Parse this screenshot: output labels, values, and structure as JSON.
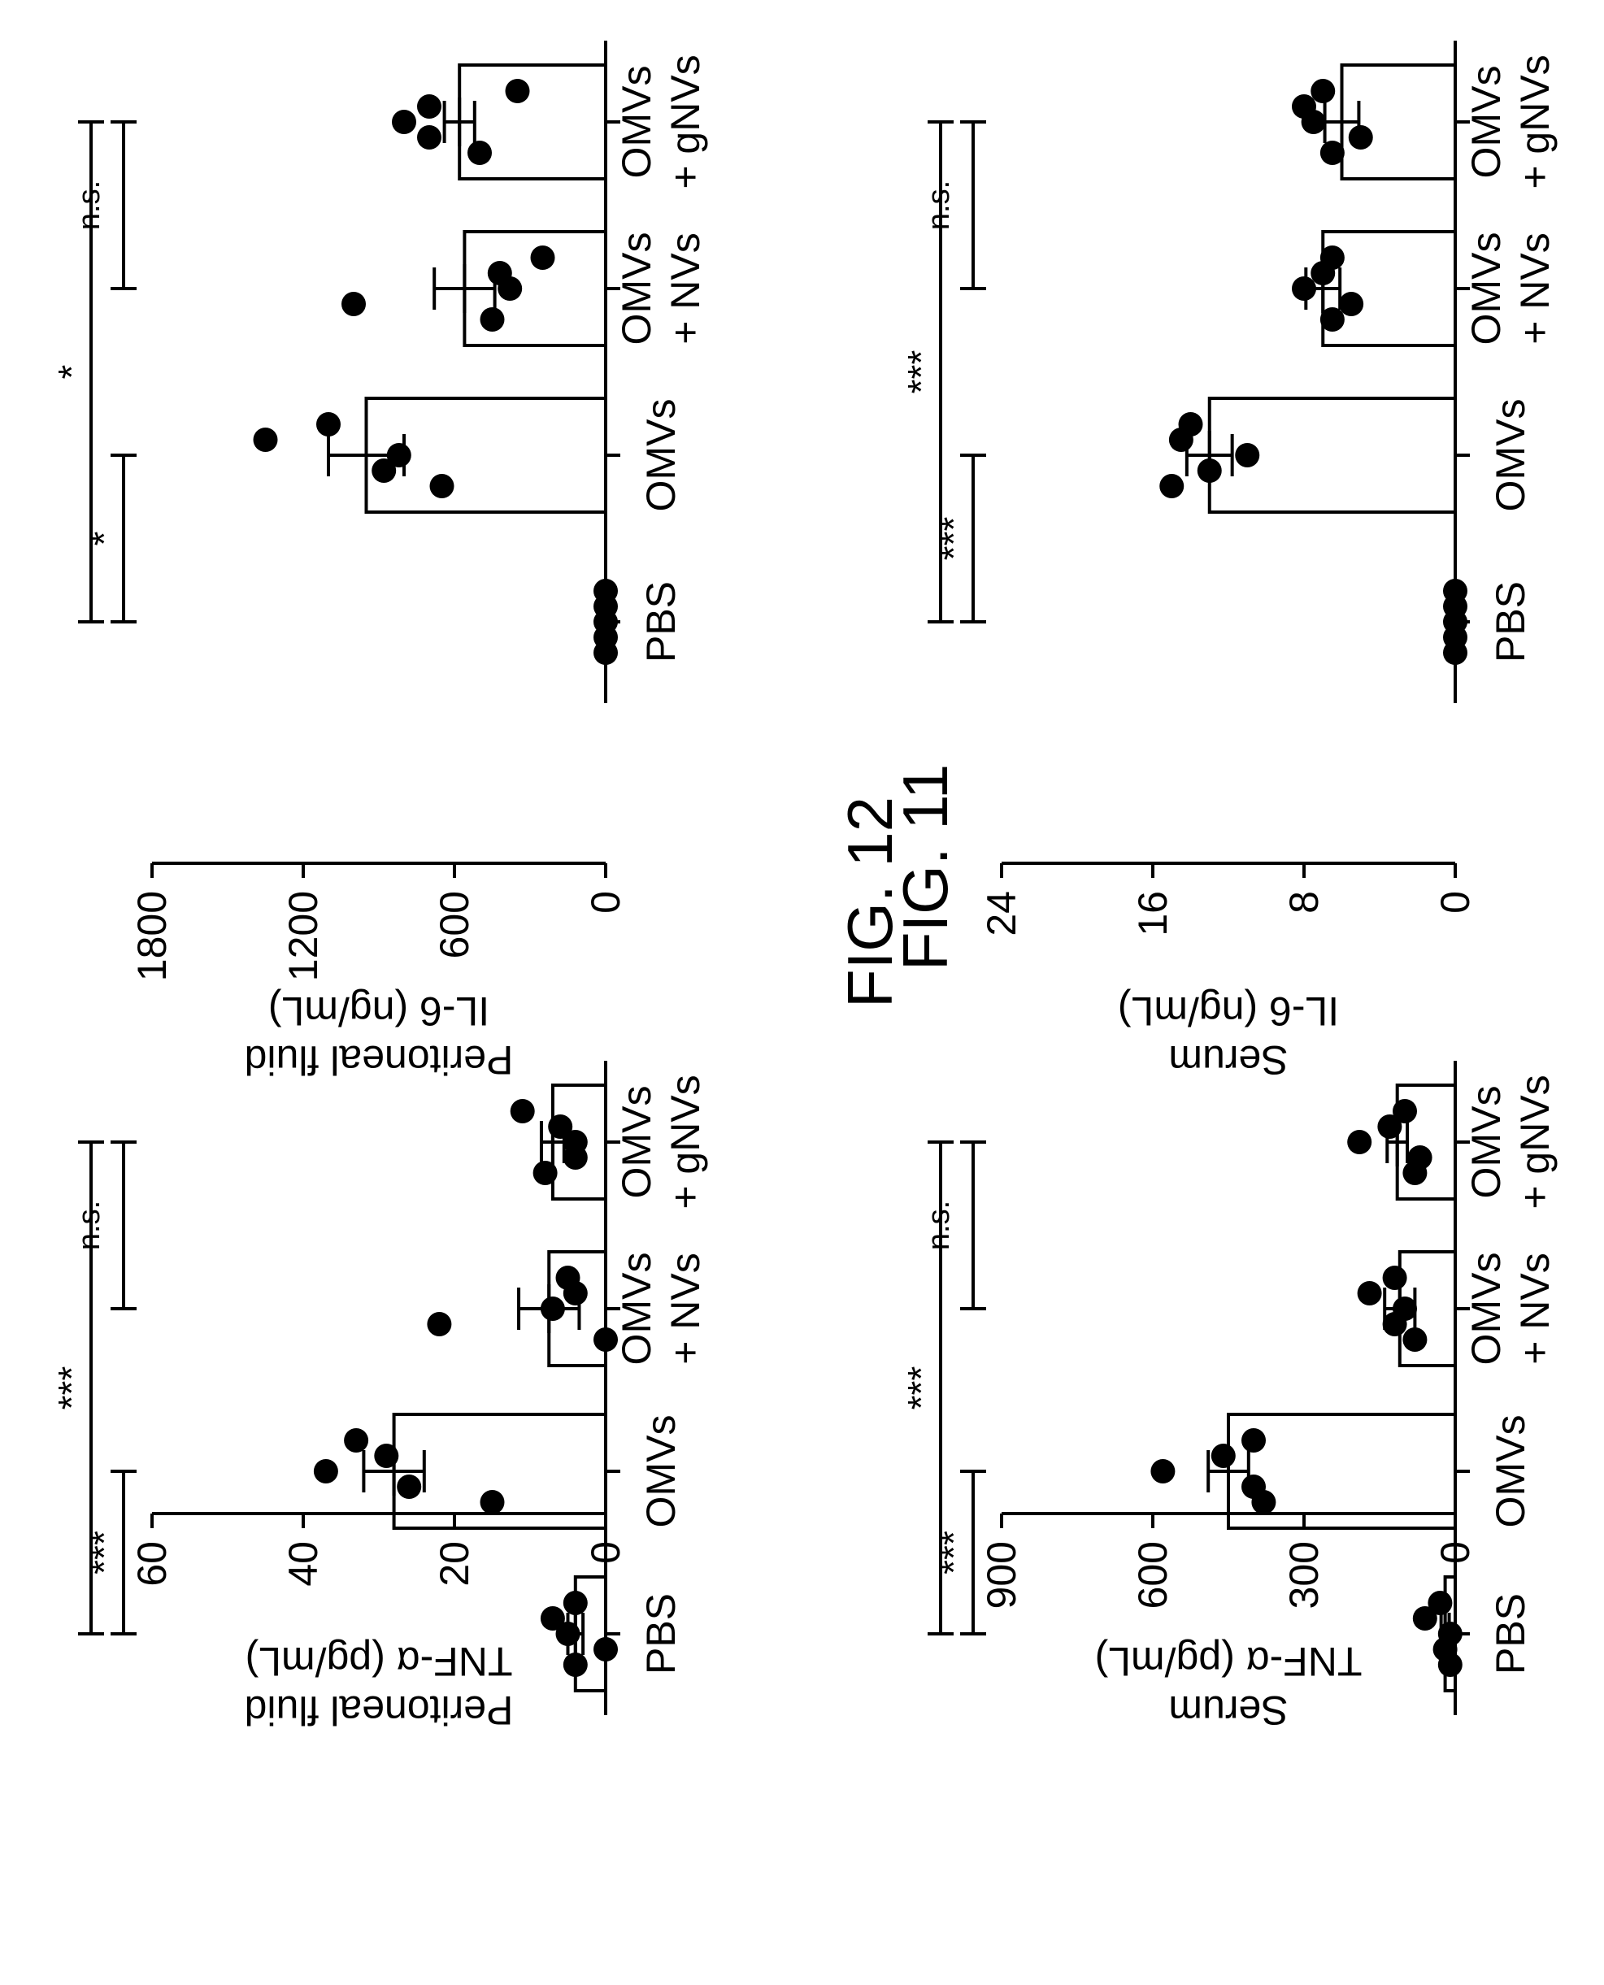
{
  "figures": [
    {
      "label": "FIG. 11",
      "panels": [
        0,
        1
      ]
    },
    {
      "label": "FIG. 12",
      "panels": [
        2,
        3
      ]
    }
  ],
  "colors": {
    "ink": "#000000",
    "background": "#ffffff"
  },
  "chart_data": [
    {
      "type": "bar",
      "title": "",
      "ylabel": [
        "Peritoneal fluid",
        "TNF-α (pg/mL)"
      ],
      "ylim": [
        0,
        60
      ],
      "yticks": [
        0,
        20,
        40,
        60
      ],
      "categories": [
        [
          "PBS"
        ],
        [
          "OMVs"
        ],
        [
          "OMVs",
          "+ NVs"
        ],
        [
          "OMVs",
          "+ gNVs"
        ]
      ],
      "means": [
        4,
        28,
        7.5,
        7
      ],
      "sem": [
        1,
        4,
        4,
        1.5
      ],
      "points": [
        [
          4,
          7,
          5,
          0,
          4
        ],
        [
          33,
          29,
          37,
          26,
          15
        ],
        [
          5,
          4,
          7,
          22,
          0
        ],
        [
          11,
          6,
          4,
          4,
          8
        ]
      ],
      "significance": [
        {
          "label": "***",
          "from": 0,
          "to": 3,
          "level": 1
        },
        {
          "label": "***",
          "from": 0,
          "to": 1,
          "level": 0
        },
        {
          "label": "n.s.",
          "from": 2,
          "to": 3,
          "level": 0
        }
      ]
    },
    {
      "type": "bar",
      "title": "",
      "ylabel": [
        "Peritoneal fluid",
        "IL-6 (ng/mL)"
      ],
      "ylim": [
        0,
        1800
      ],
      "yticks": [
        0,
        600,
        1200,
        1800
      ],
      "categories": [
        [
          "PBS"
        ],
        [
          "OMVs"
        ],
        [
          "OMVs",
          "+ NVs"
        ],
        [
          "OMVs",
          "+ gNVs"
        ]
      ],
      "means": [
        0,
        950,
        560,
        580
      ],
      "sem": [
        0,
        150,
        120,
        60
      ],
      "points": [
        [
          0,
          0,
          0,
          0,
          0
        ],
        [
          1100,
          1350,
          820,
          880,
          650
        ],
        [
          250,
          420,
          380,
          1000,
          450
        ],
        [
          350,
          700,
          800,
          700,
          500
        ]
      ],
      "significance": [
        {
          "label": "*",
          "from": 0,
          "to": 3,
          "level": 1
        },
        {
          "label": "*",
          "from": 0,
          "to": 1,
          "level": 0
        },
        {
          "label": "n.s.",
          "from": 2,
          "to": 3,
          "level": 0
        }
      ]
    },
    {
      "type": "bar",
      "title": "",
      "ylabel": [
        "Serum",
        "TNF-α (pg/mL)"
      ],
      "ylim": [
        0,
        900
      ],
      "yticks": [
        0,
        300,
        600,
        900
      ],
      "categories": [
        [
          "PBS"
        ],
        [
          "OMVs"
        ],
        [
          "OMVs",
          "+ NVs"
        ],
        [
          "OMVs",
          "+ gNVs"
        ]
      ],
      "means": [
        20,
        450,
        110,
        115
      ],
      "sem": [
        8,
        40,
        30,
        20
      ],
      "points": [
        [
          30,
          60,
          10,
          20,
          10
        ],
        [
          400,
          460,
          580,
          400,
          380
        ],
        [
          120,
          170,
          100,
          120,
          80
        ],
        [
          100,
          130,
          190,
          70,
          80
        ]
      ],
      "significance": [
        {
          "label": "***",
          "from": 0,
          "to": 3,
          "level": 1
        },
        {
          "label": "***",
          "from": 0,
          "to": 1,
          "level": 0
        },
        {
          "label": "n.s.",
          "from": 2,
          "to": 3,
          "level": 0
        }
      ]
    },
    {
      "type": "bar",
      "title": "",
      "ylabel": [
        "Serum",
        "IL-6 (ng/mL)"
      ],
      "ylim": [
        0,
        24
      ],
      "yticks": [
        0,
        8,
        16,
        24
      ],
      "categories": [
        [
          "PBS"
        ],
        [
          "OMVs"
        ],
        [
          "OMVs",
          "+ NVs"
        ],
        [
          "OMVs",
          "+ gNVs"
        ]
      ],
      "means": [
        0,
        13,
        7,
        6
      ],
      "sem": [
        0,
        1.2,
        0.9,
        0.9
      ],
      "points": [
        [
          0,
          0,
          0,
          0,
          0
        ],
        [
          14,
          14.5,
          11,
          13,
          15
        ],
        [
          6.5,
          7,
          8,
          5.5,
          6.5
        ],
        [
          7,
          8,
          7.5,
          5,
          6.5
        ]
      ],
      "significance": [
        {
          "label": "***",
          "from": 0,
          "to": 3,
          "level": 1
        },
        {
          "label": "***",
          "from": 0,
          "to": 1,
          "level": 0
        },
        {
          "label": "n.s.",
          "from": 2,
          "to": 3,
          "level": 0
        }
      ]
    }
  ]
}
